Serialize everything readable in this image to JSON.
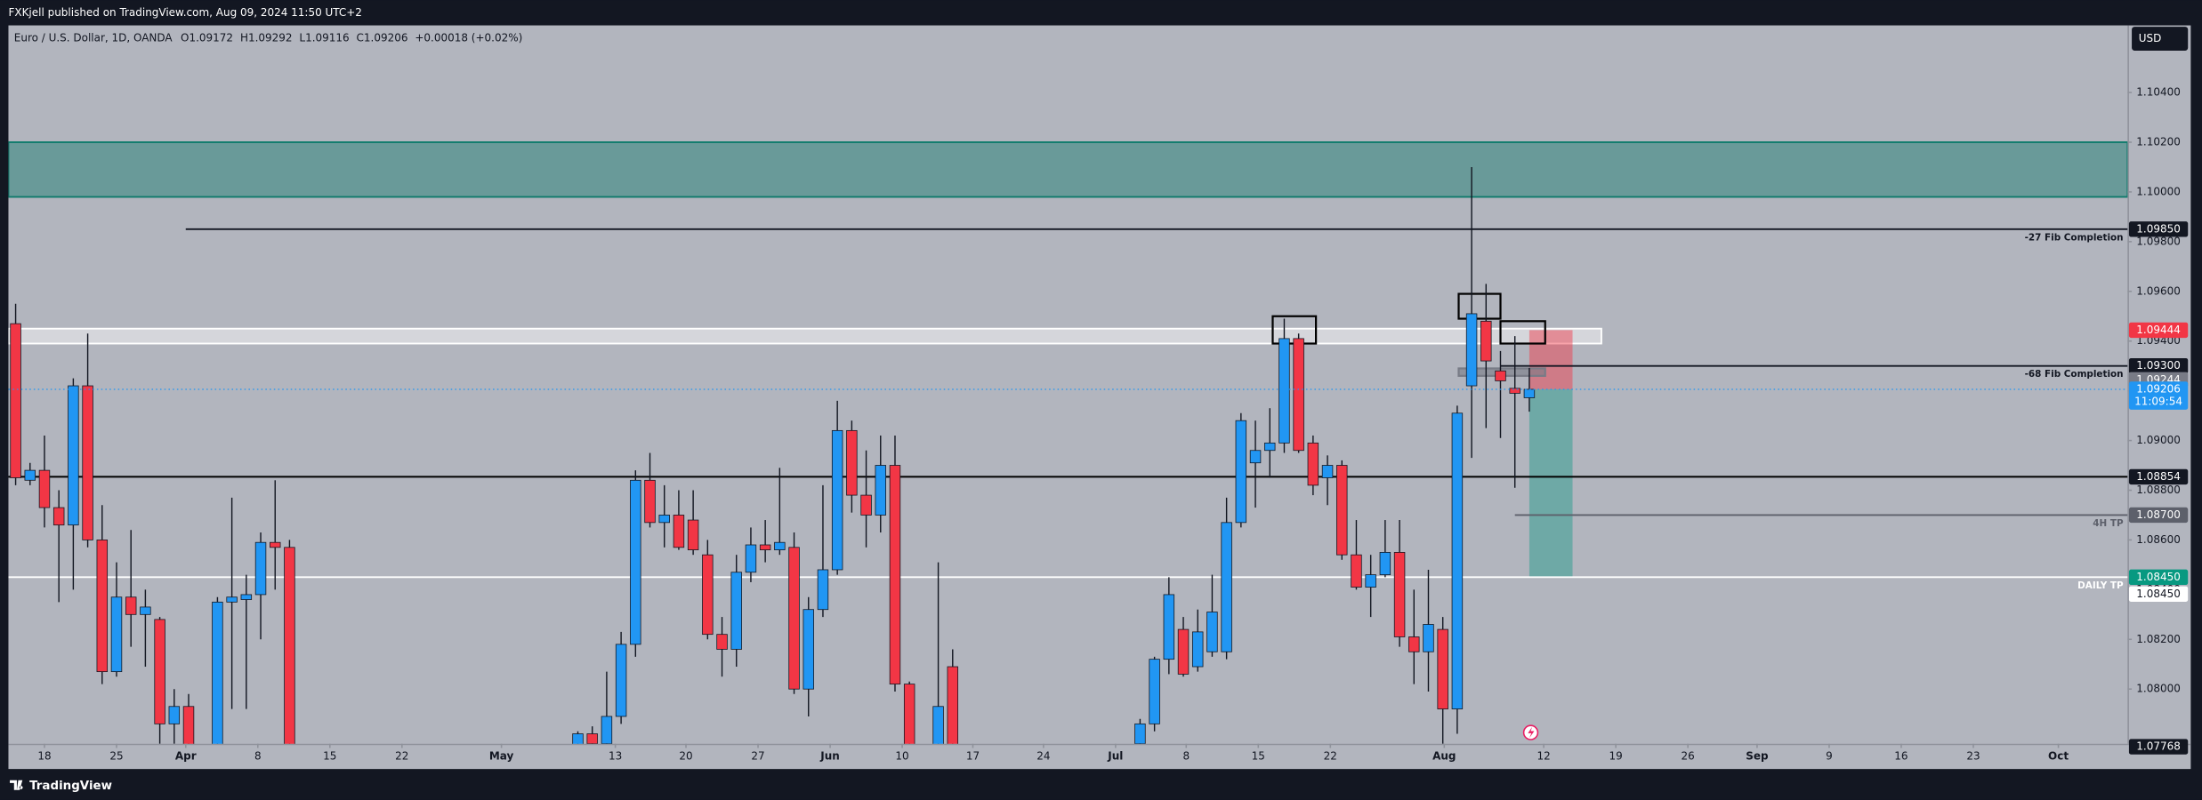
{
  "header": {
    "publisher": "FXKjell published on TradingView.com, Aug 09, 2024 11:50 UTC+2"
  },
  "footer": {
    "brand": "TradingView"
  },
  "chart_data": {
    "type": "candlestick",
    "title": "Euro / U.S. Dollar, 1D, OANDA",
    "ohlc_legend": [
      "O1.09172",
      "H1.09292",
      "L1.09116",
      "C1.09206",
      "+0.00018 (+0.02%)"
    ],
    "currency": "USD",
    "up_color": "#2196f3",
    "down_color": "#f23645",
    "grid": false,
    "xlim": [
      -2.5,
      144.5
    ],
    "ylim": [
      1.0778,
      1.1067
    ],
    "xticks": [
      {
        "value": 0,
        "label": "18"
      },
      {
        "value": 5,
        "label": "25"
      },
      {
        "value": 9.8,
        "label": "Apr"
      },
      {
        "value": 14.8,
        "label": "8"
      },
      {
        "value": 19.8,
        "label": "15"
      },
      {
        "value": 24.8,
        "label": "22"
      },
      {
        "value": 31.7,
        "label": "May"
      },
      {
        "value": 39.6,
        "label": "13"
      },
      {
        "value": 44.5,
        "label": "20"
      },
      {
        "value": 49.5,
        "label": "27"
      },
      {
        "value": 54.5,
        "label": "Jun"
      },
      {
        "value": 59.5,
        "label": "10"
      },
      {
        "value": 64.4,
        "label": "17"
      },
      {
        "value": 69.3,
        "label": "24"
      },
      {
        "value": 74.3,
        "label": "Jul"
      },
      {
        "value": 79.2,
        "label": "8"
      },
      {
        "value": 84.2,
        "label": "15"
      },
      {
        "value": 89.2,
        "label": "22"
      },
      {
        "value": 97.1,
        "label": "Aug"
      },
      {
        "value": 104,
        "label": "12"
      },
      {
        "value": 109,
        "label": "19"
      },
      {
        "value": 114,
        "label": "26"
      },
      {
        "value": 118.8,
        "label": "Sep"
      },
      {
        "value": 123.8,
        "label": "9"
      },
      {
        "value": 128.8,
        "label": "16"
      },
      {
        "value": 133.8,
        "label": "23"
      },
      {
        "value": 139.7,
        "label": "Oct"
      }
    ],
    "yticks": [
      {
        "value": 1.104,
        "label": "1.10400"
      },
      {
        "value": 1.102,
        "label": "1.10200"
      },
      {
        "value": 1.1,
        "label": "1.10000"
      },
      {
        "value": 1.098,
        "label": "1.09800"
      },
      {
        "value": 1.096,
        "label": "1.09600"
      },
      {
        "value": 1.094,
        "label": "1.09400"
      },
      {
        "value": 1.092,
        "label": "1.09200"
      },
      {
        "value": 1.09,
        "label": "1.09000"
      },
      {
        "value": 1.088,
        "label": "1.08800"
      },
      {
        "value": 1.086,
        "label": "1.08600"
      },
      {
        "value": 1.084,
        "label": "1.08400"
      },
      {
        "value": 1.082,
        "label": "1.08200"
      },
      {
        "value": 1.08,
        "label": "1.08000"
      }
    ],
    "candles": {
      "x": [
        -2,
        -1,
        0,
        1,
        2,
        3,
        4,
        5,
        6,
        7,
        8,
        9,
        10,
        12,
        13,
        14,
        15,
        16,
        17,
        37,
        38,
        39,
        40,
        41,
        42,
        43,
        44,
        45,
        46,
        47,
        48,
        49,
        50,
        51,
        52,
        53,
        54,
        55,
        56,
        57,
        58,
        59,
        60,
        62,
        63,
        76,
        77,
        78,
        79,
        80,
        81,
        82,
        83,
        84,
        85,
        86,
        87,
        88,
        89,
        90,
        91,
        92,
        93,
        94,
        95,
        96,
        97,
        98,
        99,
        100,
        101,
        102,
        103
      ],
      "open": [
        1.0947,
        1.0884,
        1.0888,
        1.0873,
        1.0866,
        1.0922,
        1.086,
        1.0807,
        1.0837,
        1.083,
        1.0828,
        1.0786,
        1.0793,
        1.0761,
        1.0835,
        1.0836,
        1.0838,
        1.0859,
        1.0857,
        1.0775,
        1.0782,
        1.0778,
        1.0789,
        1.0818,
        1.0884,
        1.0867,
        1.087,
        1.0868,
        1.0854,
        1.0822,
        1.0816,
        1.0847,
        1.0858,
        1.0856,
        1.0857,
        1.08,
        1.0832,
        1.0848,
        1.0904,
        1.0878,
        1.087,
        1.089,
        1.0802,
        1.0761,
        1.0809,
        1.0778,
        1.0786,
        1.0812,
        1.0824,
        1.0809,
        1.0815,
        1.0815,
        1.0867,
        1.0891,
        1.0896,
        1.0899,
        1.0941,
        1.0899,
        1.0885,
        1.089,
        1.0854,
        1.0841,
        1.0846,
        1.0855,
        1.0821,
        1.0815,
        1.0824,
        1.0792,
        1.0922,
        1.0948,
        1.0928,
        1.0921,
        1.09172
      ],
      "high": [
        1.0955,
        1.0891,
        1.0902,
        1.088,
        1.0925,
        1.0943,
        1.0874,
        1.0851,
        1.0864,
        1.084,
        1.0829,
        1.08,
        1.0798,
        1.0837,
        1.0877,
        1.0846,
        1.0863,
        1.0884,
        1.086,
        1.0783,
        1.0785,
        1.0807,
        1.0823,
        1.0888,
        1.0895,
        1.0882,
        1.088,
        1.088,
        1.086,
        1.0829,
        1.0854,
        1.0865,
        1.0868,
        1.0889,
        1.0863,
        1.0837,
        1.0882,
        1.0916,
        1.0908,
        1.0896,
        1.0902,
        1.0902,
        1.0803,
        1.0851,
        1.0816,
        1.0788,
        1.0813,
        1.0845,
        1.0829,
        1.0832,
        1.0846,
        1.0877,
        1.0911,
        1.0908,
        1.0913,
        1.0949,
        1.0943,
        1.0902,
        1.0894,
        1.0892,
        1.0868,
        1.0854,
        1.0868,
        1.0868,
        1.084,
        1.0848,
        1.0829,
        1.0914,
        1.101,
        1.0963,
        1.0936,
        1.0942,
        1.09292
      ],
      "low": [
        1.0882,
        1.0882,
        1.0865,
        1.0835,
        1.084,
        1.0857,
        1.0802,
        1.0805,
        1.0817,
        1.0809,
        1.0778,
        1.0778,
        1.0769,
        1.0759,
        1.0792,
        1.0792,
        1.082,
        1.084,
        1.0755,
        1.0772,
        1.0772,
        1.0772,
        1.0786,
        1.0813,
        1.0865,
        1.0857,
        1.0856,
        1.0854,
        1.082,
        1.0805,
        1.0809,
        1.0843,
        1.0851,
        1.0854,
        1.0798,
        1.0789,
        1.0829,
        1.0846,
        1.0871,
        1.0857,
        1.0863,
        1.0799,
        1.0755,
        1.0759,
        1.0759,
        1.0772,
        1.0783,
        1.0806,
        1.0805,
        1.0807,
        1.0813,
        1.0812,
        1.0865,
        1.0873,
        1.0885,
        1.0895,
        1.0895,
        1.0878,
        1.0874,
        1.0852,
        1.084,
        1.0829,
        1.0845,
        1.0817,
        1.0802,
        1.0799,
        1.0778,
        1.0782,
        1.0893,
        1.0905,
        1.0901,
        1.0881,
        1.09116
      ],
      "close": [
        1.0885,
        1.0888,
        1.0873,
        1.0866,
        1.0922,
        1.086,
        1.0807,
        1.0837,
        1.083,
        1.0833,
        1.0786,
        1.0793,
        1.0772,
        1.0835,
        1.0837,
        1.0838,
        1.0859,
        1.0857,
        1.0761,
        1.0782,
        1.0778,
        1.0789,
        1.0818,
        1.0884,
        1.0867,
        1.087,
        1.0857,
        1.0856,
        1.0822,
        1.0816,
        1.0847,
        1.0858,
        1.0856,
        1.0859,
        1.08,
        1.0832,
        1.0848,
        1.0904,
        1.0878,
        1.087,
        1.089,
        1.0802,
        1.0761,
        1.0793,
        1.0761,
        1.0786,
        1.0812,
        1.0838,
        1.0806,
        1.0823,
        1.0831,
        1.0867,
        1.0908,
        1.0896,
        1.0899,
        1.0941,
        1.0896,
        1.0882,
        1.089,
        1.0854,
        1.0841,
        1.0846,
        1.0855,
        1.0821,
        1.0815,
        1.0826,
        1.0792,
        1.0911,
        1.0951,
        1.0932,
        1.0924,
        1.0919,
        1.09206
      ]
    },
    "zones": [
      {
        "from": 1.0998,
        "to": 1.102,
        "color": "#0f7b6c"
      },
      {
        "from": 1.0939,
        "to": 1.0945,
        "x_start": -2.5,
        "x_end": 108,
        "color": "#ffffff"
      }
    ],
    "lines": [
      {
        "value": 1.0985,
        "x_start": 9.8,
        "label": "-27 Fib Completion",
        "color": "#131722"
      },
      {
        "value": 1.093,
        "x_start": 101,
        "label": "-68 Fib Completion",
        "color": "#131722"
      },
      {
        "value": 1.08854,
        "color": "#000000"
      },
      {
        "value": 1.087,
        "x_start": 102,
        "label": "4H TP",
        "color": "#5d606b"
      },
      {
        "value": 1.0845,
        "label": "DAILY TP",
        "color": "#ffffff"
      }
    ],
    "boxes": [
      {
        "x": [
          85.2,
          88.2
        ],
        "y": [
          1.0939,
          1.095
        ],
        "color": "#000000"
      },
      {
        "x": [
          98.1,
          101
        ],
        "y": [
          1.0949,
          1.0959
        ],
        "color": "#000000"
      },
      {
        "x": [
          101,
          104.1
        ],
        "y": [
          1.0939,
          1.0948
        ],
        "color": "#000000"
      },
      {
        "x": [
          98.1,
          104.1
        ],
        "y": [
          1.0926,
          1.0929
        ],
        "color": "#787b86"
      }
    ],
    "position": {
      "x": [
        103,
        106
      ],
      "stop": 1.09444,
      "entry": 1.09206,
      "target": 1.0845
    },
    "price_tags": [
      {
        "value": 1.0985,
        "label": "1.09850",
        "color": "#131722",
        "text_color": "#ffffff"
      },
      {
        "value": 1.09444,
        "label": "1.09444",
        "color": "#f23645",
        "text_color": "#ffffff"
      },
      {
        "value": 1.093,
        "label": "1.09300",
        "color": "#131722",
        "text_color": "#ffffff"
      },
      {
        "value": 1.09244,
        "label": "1.09244",
        "color": "#787b86",
        "text_color": "#ffffff"
      },
      {
        "value": 1.09206,
        "label": "1.09206",
        "countdown": "11:09:54",
        "color": "#2196f3",
        "text_color": "#ffffff"
      },
      {
        "value": 1.08854,
        "label": "1.08854",
        "color": "#131722",
        "text_color": "#ffffff"
      },
      {
        "value": 1.087,
        "label": "1.08700",
        "color": "#5d606b",
        "text_color": "#ffffff"
      },
      {
        "value": 1.0845,
        "label": "1.08450",
        "color": "#089981",
        "text_color": "#ffffff"
      },
      {
        "value": 1.0845,
        "label": "1.08450",
        "color": "#ffffff",
        "text_color": "#131722"
      },
      {
        "value": 1.07768,
        "label": "1.07768",
        "color": "#131722",
        "text_color": "#ffffff"
      }
    ]
  }
}
